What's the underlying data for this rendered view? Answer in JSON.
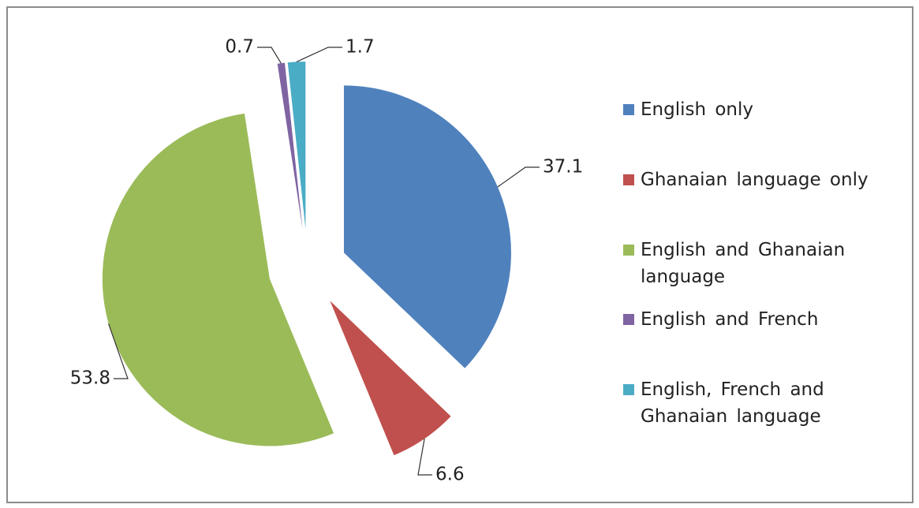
{
  "chart_data": {
    "type": "pie",
    "categories": [
      "English only",
      "Ghanaian language only",
      "English and Ghanaian language",
      "English and French",
      "English, French and Ghanaian language"
    ],
    "values": [
      37.1,
      6.6,
      53.8,
      0.7,
      1.7
    ],
    "colors": [
      "#4f81bd",
      "#c0504d",
      "#9bbb59",
      "#8064a2",
      "#4bacc6"
    ],
    "legend": "right"
  }
}
